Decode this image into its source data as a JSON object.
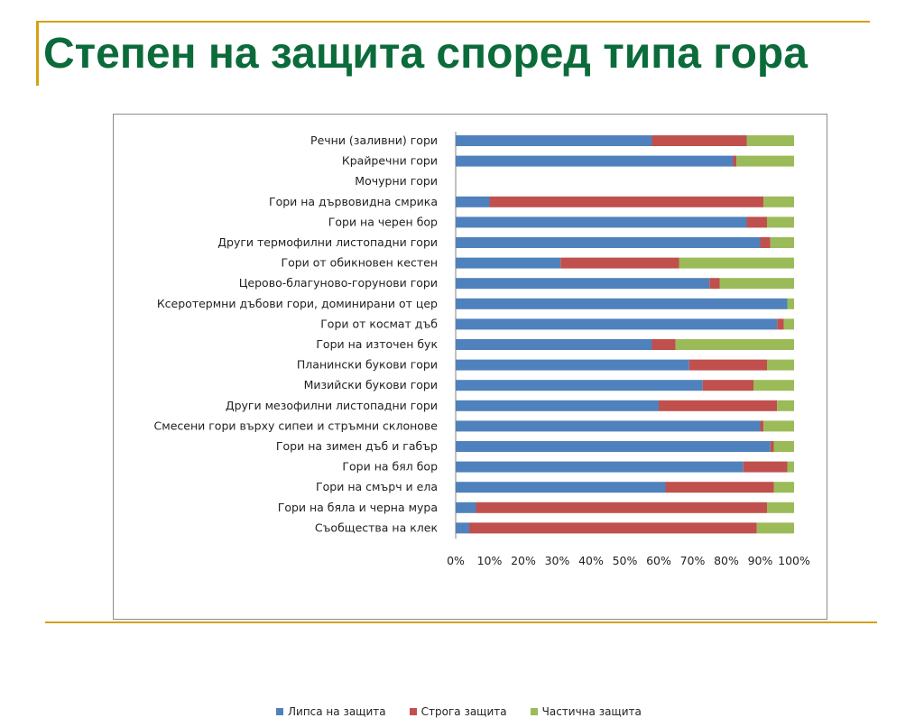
{
  "slide": {
    "title": "Степен на защита според типа гора",
    "title_color": "#0b6b3a",
    "rule_color": "#d4a017"
  },
  "chart_data": {
    "type": "bar",
    "orientation": "horizontal",
    "stacked": "percent",
    "categories": [
      "Речни (заливни) гори",
      "Крайречни гори",
      "Мочурни гори",
      "Гори на дървовидна смрика",
      "Гори на черен бор",
      "Други термофилни листопадни гори",
      "Гори от обикновен кестен",
      "Церово-благуново-горунови гори",
      "Ксеротермни дъбови гори, доминирани от цер",
      "Гори от космат дъб",
      "Гори на източен бук",
      "Планински букови гори",
      "Мизийски букови гори",
      "Други мезофилни листопадни гори",
      "Смесени гори върху сипеи и стръмни склонове",
      "Гори на зимен дъб и габър",
      "Гори на бял бор",
      "Гори на смърч и ела",
      "Гори на бяла и черна мура",
      "Съобщества на клек"
    ],
    "series": [
      {
        "name": "Липса на защита",
        "color": "#4f81bd",
        "values": [
          58,
          82,
          0,
          10,
          86,
          90,
          31,
          75,
          98,
          95,
          58,
          69,
          73,
          60,
          90,
          93,
          85,
          62,
          6,
          4
        ]
      },
      {
        "name": "Строга защита",
        "color": "#c0504d",
        "values": [
          28,
          1,
          0,
          81,
          6,
          3,
          35,
          3,
          0,
          2,
          7,
          23,
          15,
          35,
          1,
          1,
          13,
          32,
          86,
          85
        ]
      },
      {
        "name": "Частична защита",
        "color": "#9bbb59",
        "values": [
          14,
          17,
          0,
          9,
          8,
          7,
          34,
          22,
          2,
          3,
          35,
          8,
          12,
          5,
          9,
          6,
          2,
          6,
          8,
          11
        ]
      }
    ],
    "x_ticks": [
      "0%",
      "10%",
      "20%",
      "30%",
      "40%",
      "50%",
      "60%",
      "70%",
      "80%",
      "90%",
      "100%"
    ],
    "xlim": [
      0,
      100
    ],
    "legend_position": "bottom",
    "grid": false
  }
}
